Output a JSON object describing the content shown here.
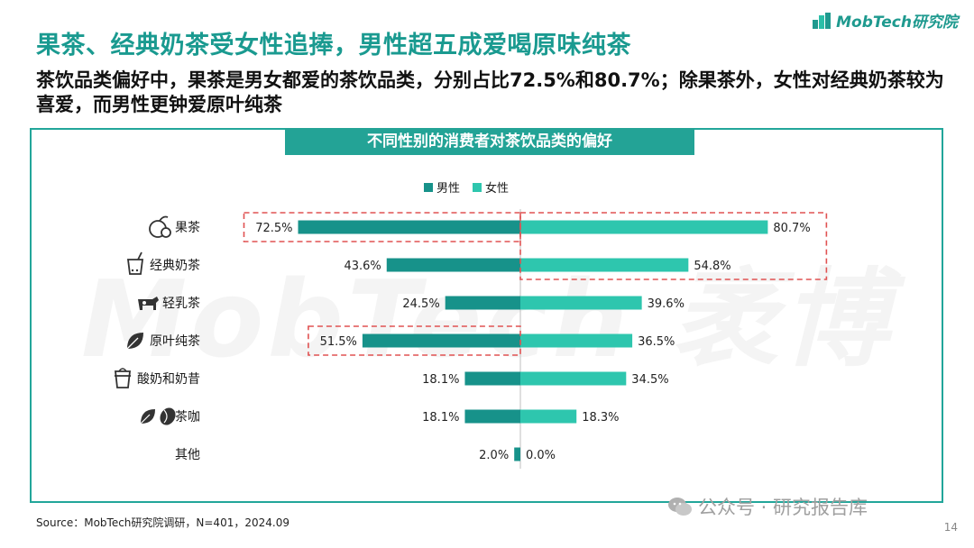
{
  "header": {
    "logo_text": "MobTech研究院",
    "title": "果茶、经典奶茶受女性追捧，男性超五成爱喝原味纯茶",
    "subtitle": "茶饮品类偏好中，果茶是男女都爱的茶饮品类，分别占比72.5%和80.7%；除果茶外，女性对经典奶茶较为喜爱，而男性更钟爱原叶纯茶"
  },
  "watermark": "MobTech 袤博",
  "chart_data": {
    "type": "bar",
    "title": "不同性别的消费者对茶饮品类的偏好",
    "orientation": "horizontal-diverging",
    "categories": [
      "果茶",
      "经典奶茶",
      "轻乳茶",
      "原叶纯茶",
      "酸奶和奶昔",
      "茶咖",
      "其他"
    ],
    "category_icons": [
      "fruit-icon",
      "milk-tea-cup-icon",
      "cow-icon",
      "leaf-icon",
      "yogurt-cup-icon",
      "leaf-coffee-icon",
      ""
    ],
    "series": [
      {
        "name": "男性",
        "color": "#17928a",
        "values": [
          72.5,
          43.6,
          24.5,
          51.5,
          18.1,
          18.1,
          2.0
        ]
      },
      {
        "name": "女性",
        "color": "#2ec6ae",
        "values": [
          80.7,
          54.8,
          39.6,
          36.5,
          34.5,
          18.3,
          0.0
        ]
      }
    ],
    "value_suffix": "%",
    "highlighted_categories": [
      "果茶",
      "原叶纯茶"
    ],
    "highlight_color": "#e05252",
    "legend": "top-center"
  },
  "footer": {
    "source": "Source：MobTech研究院调研，N=401，2024.09",
    "wechat": "公众号 · 研究报告库",
    "page": "14"
  }
}
